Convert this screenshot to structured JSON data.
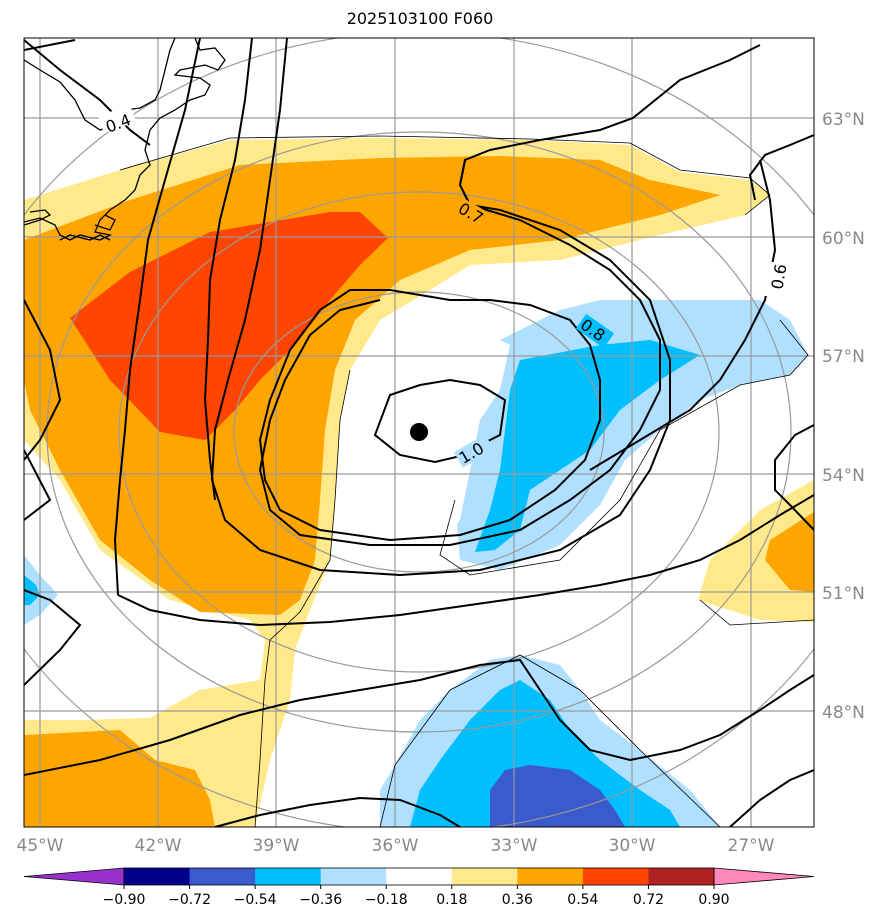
{
  "title": "2025103100 F060",
  "map": {
    "lon_labels": [
      "45°W",
      "42°W",
      "39°W",
      "36°W",
      "33°W",
      "30°W",
      "27°W"
    ],
    "lat_labels": [
      "63°N",
      "60°N",
      "57°N",
      "54°N",
      "51°N",
      "48°N"
    ],
    "contour_labels": [
      "0.4",
      "0.7",
      "0.8",
      "0.6",
      "1.0"
    ],
    "center_marker": "storm-center-dot"
  },
  "colorbar": {
    "ticks": [
      "−0.90",
      "−0.72",
      "−0.54",
      "−0.36",
      "−0.18",
      "0.18",
      "0.36",
      "0.54",
      "0.72",
      "0.90"
    ],
    "colors": [
      "#9932cc",
      "#00008b",
      "#3a5bcd",
      "#00bfff",
      "#b0e0ff",
      "#ffffff",
      "#ffe98a",
      "#ffa500",
      "#ff4500",
      "#b22222",
      "#ff88bb"
    ]
  },
  "colors": {
    "land": "#000000",
    "grid": "#999999",
    "contour": "#000000"
  }
}
